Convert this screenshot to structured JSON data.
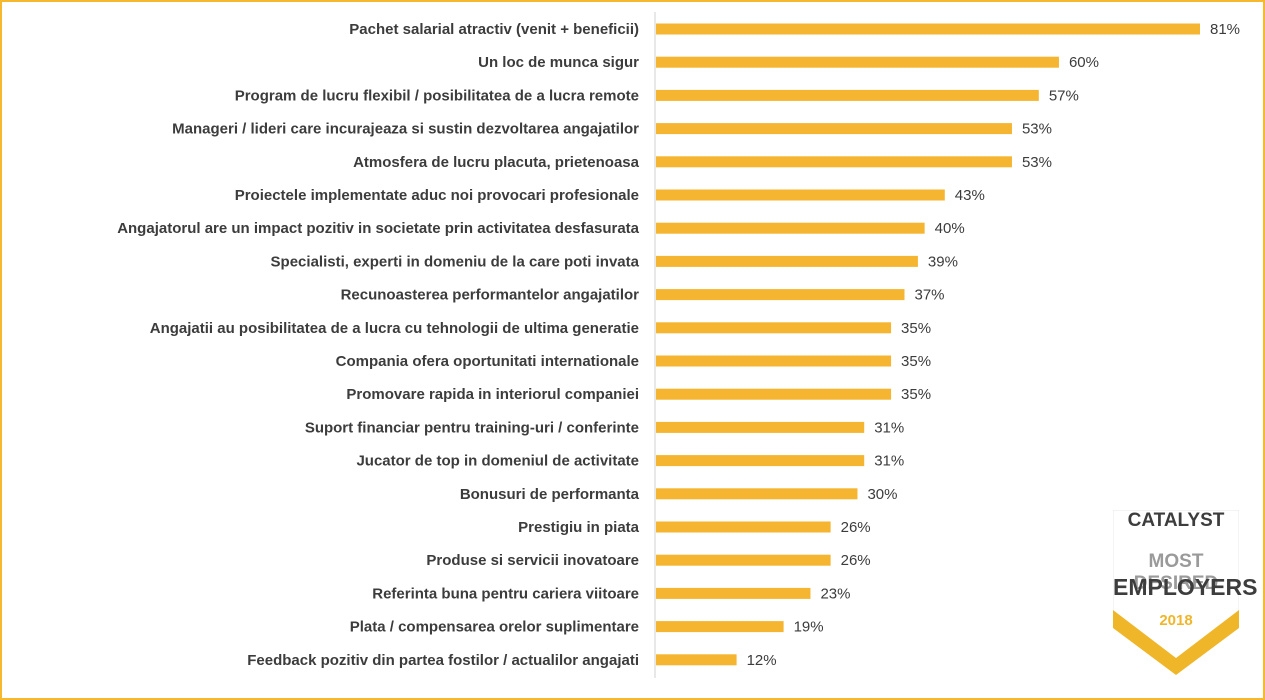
{
  "chart_data": {
    "type": "bar",
    "orientation": "horizontal",
    "categories": [
      "Pachet salarial atractiv (venit + beneficii)",
      "Un loc de munca sigur",
      "Program de lucru flexibil / posibilitatea de a lucra remote",
      "Manageri / lideri care incurajeaza si sustin dezvoltarea angajatilor",
      "Atmosfera de lucru placuta, prietenoasa",
      "Proiectele implementate aduc noi provocari profesionale",
      "Angajatorul are un impact pozitiv in societate prin activitatea desfasurata",
      "Specialisti, experti in domeniu de la care poti invata",
      "Recunoasterea performantelor angajatilor",
      "Angajatii au posibilitatea de a lucra cu tehnologii de ultima generatie",
      "Compania ofera oportunitati internationale",
      "Promovare rapida in interiorul companiei",
      "Suport financiar pentru training-uri / conferinte",
      "Jucator de top in domeniul de activitate",
      "Bonusuri de performanta",
      "Prestigiu in piata",
      "Produse si servicii inovatoare",
      "Referinta buna pentru cariera viitoare",
      "Plata / compensarea orelor suplimentare",
      "Feedback pozitiv din partea fostilor / actualilor angajati"
    ],
    "values": [
      81,
      60,
      57,
      53,
      53,
      43,
      40,
      39,
      37,
      35,
      35,
      35,
      31,
      31,
      30,
      26,
      26,
      23,
      19,
      12
    ],
    "value_labels": [
      "81%",
      "60%",
      "57%",
      "53%",
      "53%",
      "43%",
      "40%",
      "39%",
      "37%",
      "35%",
      "35%",
      "35%",
      "31%",
      "31%",
      "30%",
      "26%",
      "26%",
      "23%",
      "19%",
      "12%"
    ],
    "unit": "%",
    "xlim": [
      0,
      81
    ],
    "grid": false,
    "bar_color": "#f6b530",
    "border_color": "#f5b82e",
    "axis_color": "#d0d0d0"
  },
  "badge": {
    "brand": "CATALYST",
    "line1": "MOST DESIRED",
    "line2": "EMPLOYERS",
    "year": "2018",
    "colors": {
      "gold": "#f0b62a",
      "dark": "#3d3d3d",
      "gray": "#9a9a9a"
    }
  }
}
